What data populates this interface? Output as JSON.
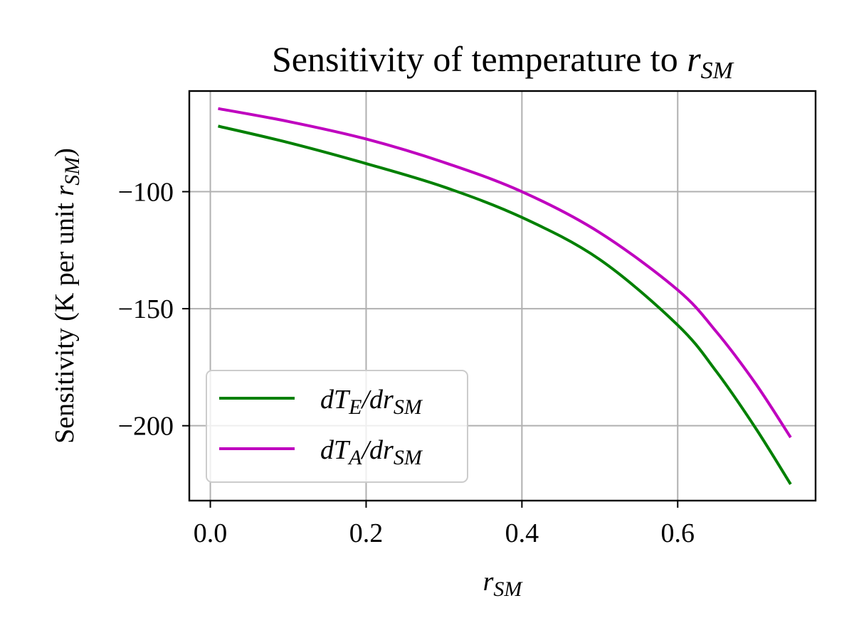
{
  "chart_data": {
    "type": "line",
    "title": {
      "text": "Sensitivity of temperature to ",
      "var": "r",
      "var_sub": "SM"
    },
    "xlabel": {
      "var": "r",
      "var_sub": "SM"
    },
    "ylabel": {
      "text_before": "Sensitivity (K per unit ",
      "var": "r",
      "var_sub": "SM",
      "text_after": ")"
    },
    "xlim": [
      -0.027,
      0.777
    ],
    "ylim": [
      -232,
      -57
    ],
    "xticks": [
      0.0,
      0.2,
      0.4,
      0.6
    ],
    "xtick_labels": [
      "0.0",
      "0.2",
      "0.4",
      "0.6"
    ],
    "yticks": [
      -100,
      -150,
      -200
    ],
    "ytick_labels": [
      "−100",
      "−150",
      "−200"
    ],
    "grid": true,
    "legend_position": "lower-left",
    "series": [
      {
        "name": "dT_E/dr_SM",
        "legend": {
          "d": "d",
          "T": "T",
          "sub1": "E",
          "mid": "/dr",
          "sub2": "SM"
        },
        "color": "#008000",
        "x": [
          0.01,
          0.1,
          0.2,
          0.3,
          0.4,
          0.5,
          0.6,
          0.65,
          0.7,
          0.745
        ],
        "y": [
          -72,
          -79,
          -88,
          -98,
          -111,
          -129,
          -157,
          -177,
          -201,
          -225
        ]
      },
      {
        "name": "dT_A/dr_SM",
        "legend": {
          "d": "d",
          "T": "T",
          "sub1": "A",
          "mid": "/dr",
          "sub2": "SM"
        },
        "color": "#bf00bf",
        "x": [
          0.01,
          0.1,
          0.2,
          0.3,
          0.4,
          0.5,
          0.6,
          0.65,
          0.7,
          0.745
        ],
        "y": [
          -64.5,
          -70,
          -77.5,
          -87.5,
          -100,
          -117.5,
          -142,
          -160,
          -182,
          -205
        ]
      }
    ]
  }
}
